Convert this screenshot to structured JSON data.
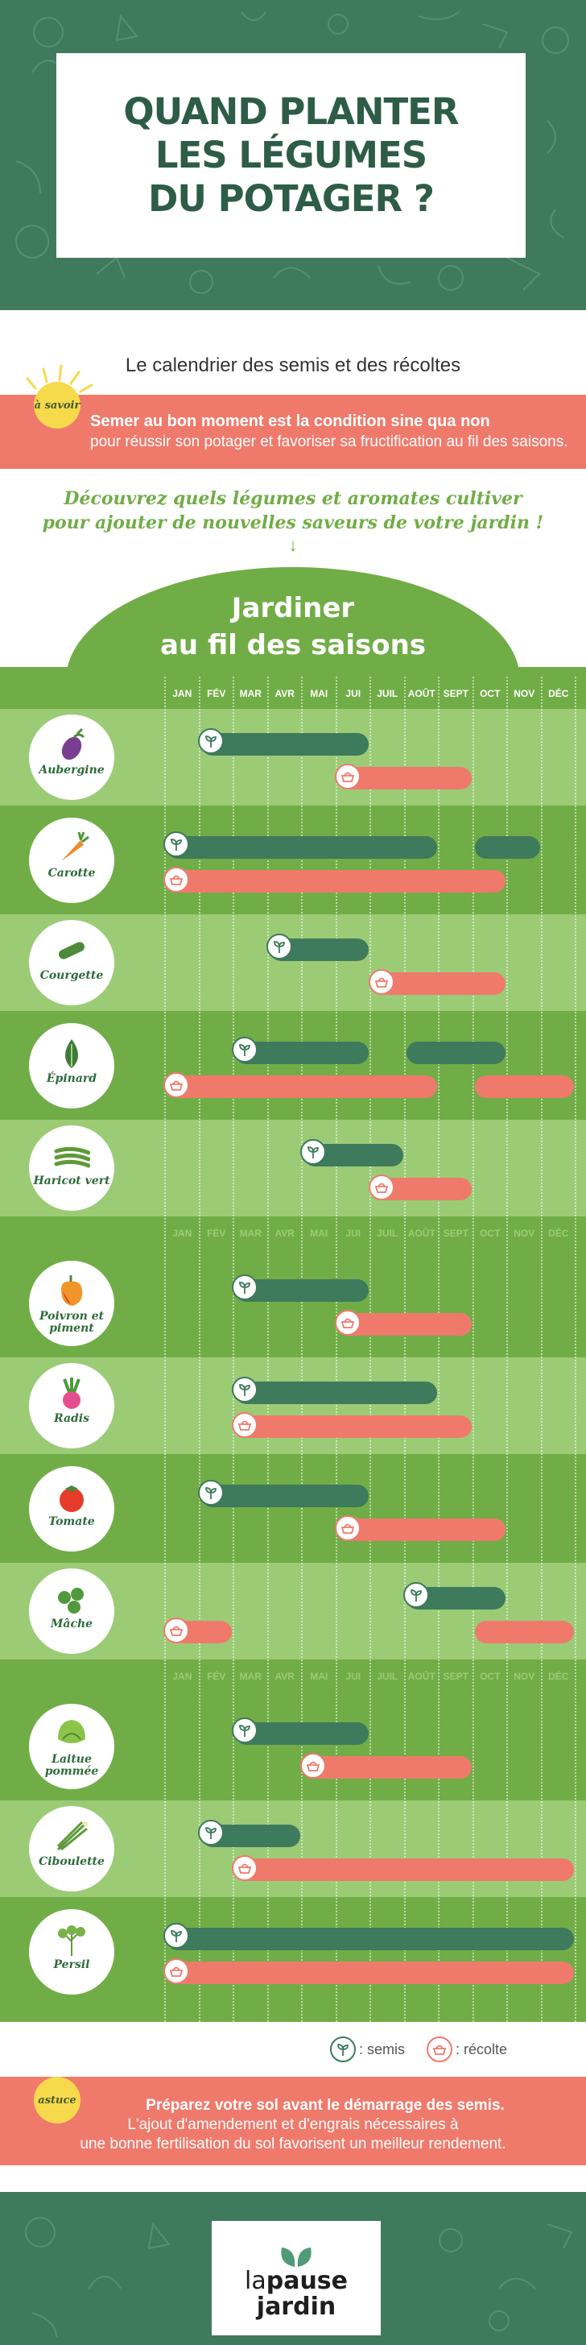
{
  "header": {
    "title_lines": [
      "QUAND PLANTER",
      "LES LÉGUMES",
      "DU POTAGER ?"
    ],
    "colors": {
      "dark_green": "#3f7a5c",
      "title": "#2d5c47"
    }
  },
  "subtitle": "Le calendrier des semis et des récoltes",
  "a_savoir": {
    "badge": "à savoir",
    "line1": "Semer au bon moment est la condition sine qua non",
    "line2": "pour réussir son potager et favoriser sa fructification au fil des saisons."
  },
  "discover": {
    "line1": "Découvrez quels légumes et aromates cultiver",
    "line2": "pour ajouter de nouvelles saveurs de votre jardin !",
    "arrow": "↓"
  },
  "section_title": {
    "line1": "Jardiner",
    "line2": "au fil des saisons"
  },
  "chart_data": {
    "type": "gantt",
    "title": "Jardiner au fil des saisons",
    "months": [
      "JAN",
      "FÉV",
      "MAR",
      "AVR",
      "MAI",
      "JUI",
      "JUIL",
      "AOÛT",
      "SEPT",
      "OCT",
      "NOV",
      "DÉC"
    ],
    "colors": {
      "semis": "#3e7a5c",
      "recolte": "#ef7a6c"
    },
    "rows": [
      {
        "name": "Aubergine",
        "icon": "eggplant-icon",
        "semis": [
          [
            2,
            6
          ]
        ],
        "recolte": [
          [
            6,
            9
          ]
        ]
      },
      {
        "name": "Carotte",
        "icon": "carrot-icon",
        "semis": [
          [
            1,
            8
          ],
          [
            10,
            11
          ]
        ],
        "recolte": [
          [
            1,
            10
          ]
        ]
      },
      {
        "name": "Courgette",
        "icon": "zucchini-icon",
        "semis": [
          [
            4,
            6
          ]
        ],
        "recolte": [
          [
            7,
            10
          ]
        ]
      },
      {
        "name": "Épinard",
        "icon": "spinach-icon",
        "semis": [
          [
            3,
            6
          ],
          [
            8,
            10
          ]
        ],
        "recolte": [
          [
            1,
            8
          ],
          [
            10,
            12
          ]
        ]
      },
      {
        "name": "Haricot vert",
        "icon": "green-bean-icon",
        "semis": [
          [
            5,
            7
          ]
        ],
        "recolte": [
          [
            7,
            9
          ]
        ]
      },
      {
        "name": "Poivron et piment",
        "icon": "pepper-icon",
        "semis": [
          [
            3,
            6
          ]
        ],
        "recolte": [
          [
            6,
            9
          ]
        ]
      },
      {
        "name": "Radis",
        "icon": "radish-icon",
        "semis": [
          [
            3,
            8
          ]
        ],
        "recolte": [
          [
            3,
            9
          ]
        ]
      },
      {
        "name": "Tomate",
        "icon": "tomato-icon",
        "semis": [
          [
            2,
            6
          ]
        ],
        "recolte": [
          [
            6,
            10
          ]
        ]
      },
      {
        "name": "Mâche",
        "icon": "lambs-lettuce-icon",
        "semis": [
          [
            8,
            10
          ]
        ],
        "recolte": [
          [
            1,
            2
          ],
          [
            10,
            12
          ]
        ]
      },
      {
        "name": "Laitue pommée",
        "icon": "lettuce-icon",
        "semis": [
          [
            3,
            6
          ]
        ],
        "recolte": [
          [
            5,
            9
          ]
        ]
      },
      {
        "name": "Ciboulette",
        "icon": "chive-icon",
        "semis": [
          [
            2,
            4
          ]
        ],
        "recolte": [
          [
            3,
            12
          ]
        ]
      },
      {
        "name": "Persil",
        "icon": "parsley-icon",
        "semis": [
          [
            1,
            12
          ]
        ],
        "recolte": [
          [
            1,
            12
          ]
        ]
      }
    ],
    "legend": {
      "semis": ": semis",
      "recolte": ": récolte"
    }
  },
  "astuce": {
    "badge": "astuce",
    "line1": "Préparez votre sol avant le démarrage des semis.",
    "line2": "L'ajout d'amendement et d'engrais nécessaires à",
    "line3": "une bonne fertilisation du sol favorisent un meilleur rendement."
  },
  "footer": {
    "logo_line1": "la",
    "logo_line1b": "pause",
    "logo_line2": "jardin"
  }
}
